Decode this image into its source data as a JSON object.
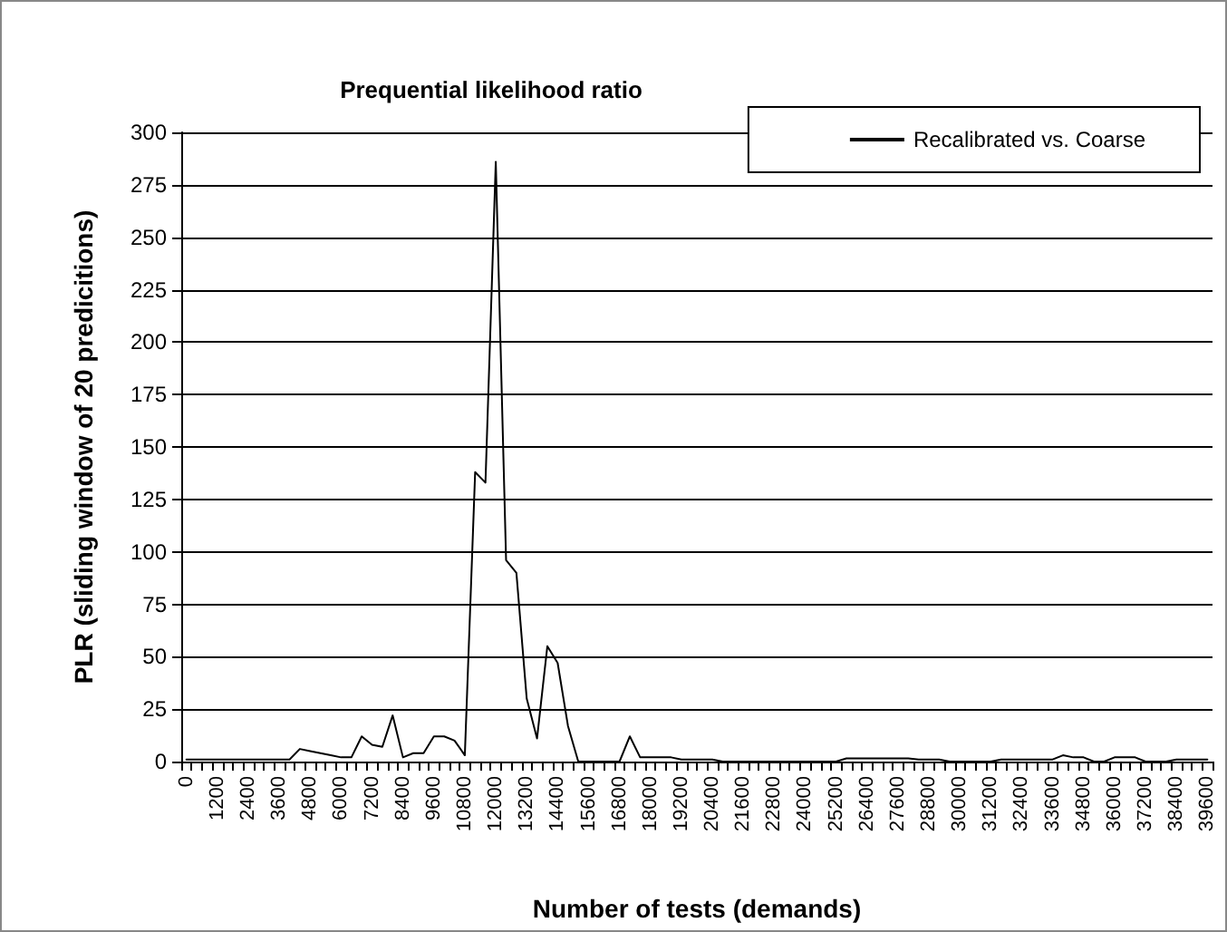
{
  "chart_data": {
    "type": "line",
    "title": "Prequential likelihood ratio",
    "xlabel": "Number of tests (demands)",
    "ylabel": "PLR (sliding window of 20 predicitions)",
    "categories": [
      "0",
      null,
      null,
      "1200",
      null,
      null,
      "2400",
      null,
      null,
      "3600",
      null,
      null,
      "4800",
      null,
      null,
      "6000",
      null,
      null,
      "7200",
      null,
      null,
      "8400",
      null,
      null,
      "9600",
      null,
      null,
      "10800",
      null,
      null,
      "12000",
      null,
      null,
      "13200",
      null,
      null,
      "14400",
      null,
      null,
      "15600",
      null,
      null,
      "16800",
      null,
      null,
      "18000",
      null,
      null,
      "19200",
      null,
      null,
      "20400",
      null,
      null,
      "21600",
      null,
      null,
      "22800",
      null,
      null,
      "24000",
      null,
      null,
      "25200",
      null,
      null,
      "26400",
      null,
      null,
      "27600",
      null,
      null,
      "28800",
      null,
      null,
      "30000",
      null,
      null,
      "31200",
      null,
      null,
      "32400",
      null,
      null,
      "33600",
      null,
      null,
      "34800",
      null,
      null,
      "36000",
      null,
      null,
      "37200",
      null,
      null,
      "38400",
      null,
      null,
      "39600"
    ],
    "series": [
      {
        "name": "Recalibrated vs. Coarse",
        "color": "#000000",
        "values": [
          1,
          1,
          1,
          1,
          1,
          1,
          1,
          1,
          1,
          1,
          1,
          6,
          5,
          4,
          3,
          2,
          2,
          12,
          8,
          7,
          22,
          2,
          4,
          4,
          12,
          12,
          10,
          3,
          138,
          133,
          286,
          96,
          90,
          30,
          11,
          55,
          47,
          17,
          0,
          0,
          0,
          0,
          0,
          12,
          2,
          2,
          2,
          2,
          1,
          1,
          1,
          1,
          0,
          0,
          0,
          0,
          0,
          0,
          0,
          0,
          0,
          0,
          0,
          0,
          1.5,
          1.5,
          1.5,
          1.5,
          1.5,
          1.5,
          1.5,
          1,
          1,
          1,
          0,
          0,
          0,
          0,
          0,
          1,
          1,
          1,
          1,
          1,
          1,
          3,
          2,
          2,
          0,
          0,
          2,
          2,
          2,
          0,
          0,
          0,
          1,
          1,
          1,
          1
        ]
      }
    ],
    "ylim": [
      0,
      300
    ],
    "yticks": [
      0,
      25,
      50,
      75,
      100,
      125,
      150,
      175,
      200,
      225,
      250,
      275,
      300
    ],
    "grid": "y",
    "legend": "top right",
    "marker": "none",
    "line_style": "solid"
  }
}
